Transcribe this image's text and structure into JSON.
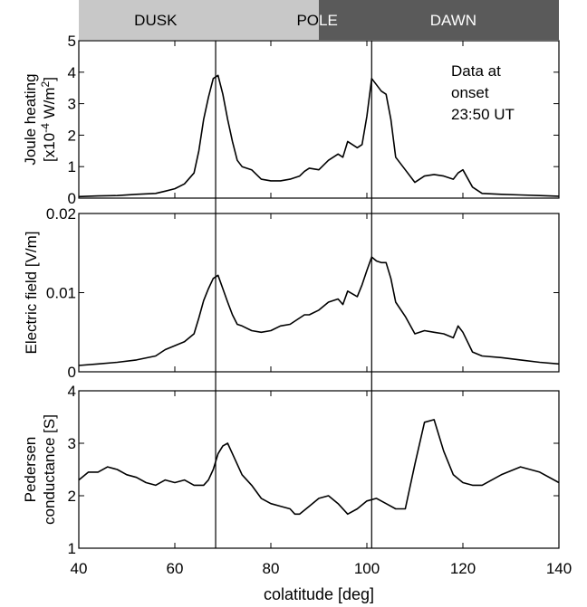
{
  "bands": [
    {
      "label": "DUSK",
      "from": 40,
      "to": 90,
      "color": "#c8c8c8",
      "text_color": "#000000"
    },
    {
      "label": "DAWN",
      "from": 90,
      "to": 140,
      "color": "#5a5a5a",
      "text_color": "#ffffff"
    }
  ],
  "pole_label_left": "PO",
  "pole_label_right": "LE",
  "xlabel": "colatitude [deg]",
  "xlim": [
    40,
    140
  ],
  "xticks": [
    40,
    60,
    80,
    100,
    120,
    140
  ],
  "xtick_labels": [
    "40",
    "60",
    "80",
    "100",
    "120",
    "140"
  ],
  "markers_x": [
    68.5,
    101
  ],
  "annotation": [
    "Data at",
    "onset",
    "23:50 UT"
  ],
  "chart_data": [
    {
      "type": "line",
      "ylabel_lines": [
        "Joule heating",
        "[x10",
        "-4",
        " W/m",
        "2",
        "]"
      ],
      "ylim": [
        0,
        5
      ],
      "yticks": [
        0,
        1,
        2,
        3,
        4,
        5
      ],
      "ytick_labels": [
        "0",
        "1",
        "2",
        "3",
        "4",
        "5"
      ],
      "x": [
        40,
        44,
        48,
        52,
        56,
        58,
        60,
        62,
        64,
        65,
        66,
        67,
        68,
        69,
        70,
        71,
        72,
        73,
        74,
        76,
        78,
        80,
        82,
        84,
        86,
        87,
        88,
        90,
        92,
        94,
        95,
        96,
        98,
        99,
        100,
        101,
        102,
        103,
        104,
        105,
        106,
        108,
        110,
        112,
        114,
        116,
        118,
        119,
        120,
        122,
        124,
        128,
        132,
        136,
        140
      ],
      "values": [
        0.05,
        0.07,
        0.08,
        0.12,
        0.15,
        0.22,
        0.3,
        0.45,
        0.8,
        1.5,
        2.5,
        3.2,
        3.8,
        3.9,
        3.3,
        2.5,
        1.8,
        1.2,
        1.0,
        0.9,
        0.6,
        0.55,
        0.55,
        0.6,
        0.7,
        0.85,
        0.95,
        0.9,
        1.2,
        1.4,
        1.3,
        1.8,
        1.6,
        1.7,
        2.6,
        3.8,
        3.6,
        3.4,
        3.3,
        2.5,
        1.3,
        0.9,
        0.5,
        0.7,
        0.75,
        0.7,
        0.6,
        0.8,
        0.9,
        0.35,
        0.15,
        0.12,
        0.1,
        0.08,
        0.06
      ]
    },
    {
      "type": "line",
      "ylabel_lines": [
        "Electric field [V/m]"
      ],
      "ylim": [
        0,
        0.02
      ],
      "yticks": [
        0,
        0.01,
        0.02
      ],
      "ytick_labels": [
        "0",
        "0.01",
        "0.02"
      ],
      "x": [
        40,
        44,
        48,
        52,
        56,
        58,
        60,
        62,
        64,
        65,
        66,
        67,
        68,
        69,
        70,
        71,
        72,
        73,
        74,
        76,
        78,
        80,
        82,
        84,
        86,
        87,
        88,
        90,
        92,
        94,
        95,
        96,
        98,
        99,
        100,
        101,
        102,
        103,
        104,
        105,
        106,
        108,
        110,
        112,
        114,
        116,
        118,
        119,
        120,
        122,
        124,
        128,
        132,
        136,
        140
      ],
      "values": [
        0.0008,
        0.001,
        0.0012,
        0.0015,
        0.002,
        0.0028,
        0.0033,
        0.0038,
        0.0048,
        0.0068,
        0.009,
        0.0105,
        0.0118,
        0.0122,
        0.0105,
        0.0088,
        0.0072,
        0.006,
        0.0058,
        0.0052,
        0.005,
        0.0052,
        0.0058,
        0.006,
        0.0068,
        0.0072,
        0.0072,
        0.0078,
        0.0088,
        0.0092,
        0.0085,
        0.0102,
        0.0095,
        0.011,
        0.0128,
        0.0145,
        0.014,
        0.0138,
        0.0138,
        0.0118,
        0.0088,
        0.007,
        0.0048,
        0.0052,
        0.005,
        0.0048,
        0.0043,
        0.0058,
        0.005,
        0.0025,
        0.002,
        0.0018,
        0.0015,
        0.0012,
        0.001
      ]
    },
    {
      "type": "line",
      "ylabel_lines": [
        "Pedersen",
        "conductance [S]"
      ],
      "ylim": [
        1,
        4
      ],
      "yticks": [
        1,
        2,
        3,
        4
      ],
      "ytick_labels": [
        "1",
        "2",
        "3",
        "4"
      ],
      "x": [
        40,
        42,
        44,
        46,
        48,
        50,
        52,
        54,
        56,
        58,
        60,
        62,
        64,
        66,
        67,
        68,
        69,
        70,
        71,
        72,
        74,
        76,
        78,
        80,
        82,
        84,
        85,
        86,
        88,
        90,
        92,
        94,
        96,
        98,
        100,
        102,
        104,
        106,
        108,
        110,
        112,
        114,
        116,
        118,
        120,
        122,
        124,
        128,
        132,
        136,
        140
      ],
      "values": [
        2.3,
        2.45,
        2.45,
        2.55,
        2.5,
        2.4,
        2.35,
        2.25,
        2.2,
        2.3,
        2.25,
        2.3,
        2.2,
        2.2,
        2.3,
        2.5,
        2.8,
        2.95,
        3.0,
        2.8,
        2.4,
        2.2,
        1.95,
        1.85,
        1.8,
        1.75,
        1.65,
        1.65,
        1.8,
        1.95,
        2.0,
        1.85,
        1.65,
        1.75,
        1.9,
        1.95,
        1.85,
        1.75,
        1.75,
        2.6,
        3.4,
        3.45,
        2.85,
        2.4,
        2.25,
        2.2,
        2.2,
        2.4,
        2.55,
        2.45,
        2.25
      ]
    }
  ]
}
